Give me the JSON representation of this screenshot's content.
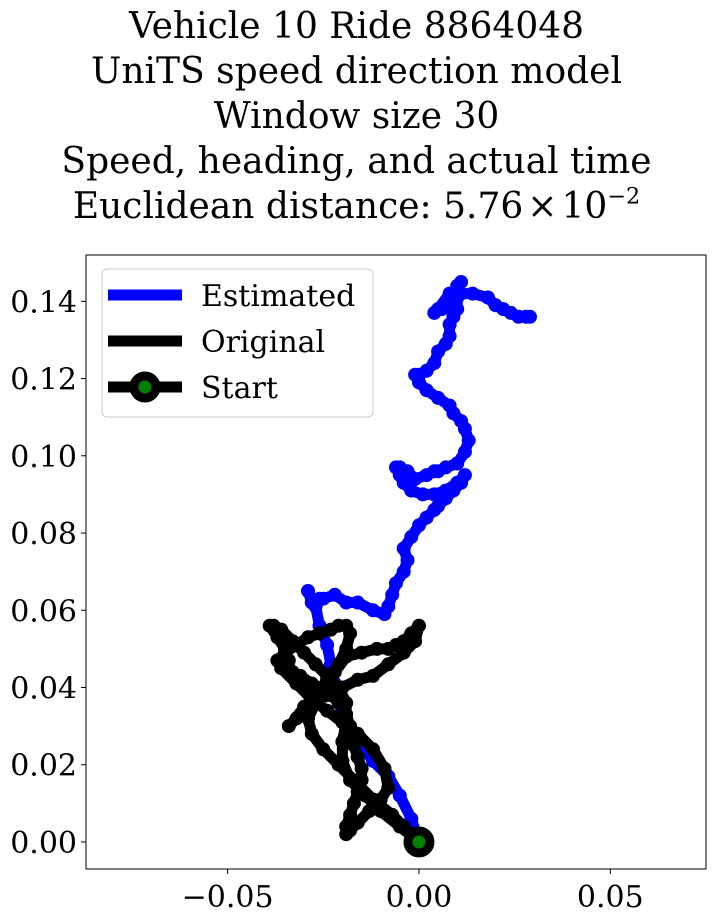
{
  "title_lines": [
    "Vehicle 10 Ride 8864048",
    "UniTS speed direction model",
    "Window size 30",
    "Speed, heading, and actual time"
  ],
  "title_distance": {
    "prefix": "Euclidean distance: 5.76",
    "times": "×",
    "base": "10",
    "exponent": "−2"
  },
  "chart_data": {
    "type": "line",
    "xlim": [
      -0.087,
      0.075
    ],
    "ylim": [
      -0.007,
      0.152
    ],
    "x_ticks": [
      -0.05,
      0.0,
      0.05
    ],
    "x_tick_labels": [
      "−0.05",
      "0.00",
      "0.05"
    ],
    "y_ticks": [
      0.0,
      0.02,
      0.04,
      0.06,
      0.08,
      0.1,
      0.12,
      0.14
    ],
    "y_tick_labels": [
      "0.00",
      "0.02",
      "0.04",
      "0.06",
      "0.08",
      "0.10",
      "0.12",
      "0.14"
    ],
    "legend_position": "upper-left",
    "grid": false,
    "series": [
      {
        "name": "Estimated",
        "color": "#0000ff",
        "x": [
          0.0,
          -0.002,
          -0.005,
          -0.008,
          -0.012,
          -0.016,
          -0.019,
          -0.021,
          -0.022,
          -0.023,
          -0.024,
          -0.026,
          -0.027,
          -0.029,
          -0.028,
          -0.026,
          -0.025,
          -0.022,
          -0.019,
          -0.016,
          -0.012,
          -0.009,
          -0.008,
          -0.007,
          -0.006,
          -0.004,
          -0.003,
          -0.004,
          -0.002,
          0.0,
          0.002,
          0.004,
          0.005,
          0.007,
          0.009,
          0.011,
          0.012,
          0.01,
          0.007,
          0.004,
          0.001,
          -0.002,
          -0.004,
          -0.005,
          -0.006,
          -0.005,
          -0.003,
          -0.001,
          0.002,
          0.004,
          0.005,
          0.007,
          0.01,
          0.012,
          0.013,
          0.012,
          0.011,
          0.009,
          0.008,
          0.005,
          0.002,
          0.0,
          -0.001,
          0.0,
          0.002,
          0.004,
          0.005,
          0.007,
          0.008,
          0.008,
          0.009,
          0.01,
          0.01,
          0.008,
          0.005,
          0.004,
          0.006,
          0.009,
          0.01,
          0.01,
          0.011,
          0.01,
          0.011,
          0.014,
          0.018,
          0.02,
          0.022,
          0.024,
          0.026,
          0.028,
          0.029
        ],
        "y": [
          0.0,
          0.006,
          0.012,
          0.017,
          0.021,
          0.026,
          0.031,
          0.036,
          0.041,
          0.046,
          0.051,
          0.056,
          0.061,
          0.065,
          0.062,
          0.063,
          0.063,
          0.064,
          0.062,
          0.062,
          0.06,
          0.059,
          0.061,
          0.064,
          0.067,
          0.07,
          0.073,
          0.076,
          0.079,
          0.082,
          0.084,
          0.086,
          0.087,
          0.089,
          0.091,
          0.093,
          0.095,
          0.093,
          0.091,
          0.09,
          0.09,
          0.091,
          0.093,
          0.095,
          0.097,
          0.097,
          0.096,
          0.094,
          0.095,
          0.096,
          0.096,
          0.097,
          0.098,
          0.101,
          0.104,
          0.107,
          0.109,
          0.111,
          0.113,
          0.115,
          0.117,
          0.119,
          0.121,
          0.121,
          0.122,
          0.124,
          0.127,
          0.129,
          0.131,
          0.134,
          0.136,
          0.138,
          0.141,
          0.142,
          0.138,
          0.137,
          0.138,
          0.139,
          0.141,
          0.143,
          0.145,
          0.144,
          0.142,
          0.142,
          0.141,
          0.139,
          0.138,
          0.137,
          0.136,
          0.136,
          0.136
        ]
      },
      {
        "name": "Original",
        "color": "#000000",
        "x": [
          0.0,
          -0.005,
          -0.01,
          -0.014,
          -0.018,
          -0.02,
          -0.02,
          -0.019,
          -0.019,
          -0.021,
          -0.024,
          -0.027,
          -0.03,
          -0.033,
          -0.036,
          -0.038,
          -0.039,
          -0.037,
          -0.035,
          -0.034,
          -0.034,
          -0.033,
          -0.031,
          -0.028,
          -0.024,
          -0.021,
          -0.019,
          -0.018,
          -0.018,
          -0.017,
          -0.016,
          -0.015,
          -0.015,
          -0.016,
          -0.017,
          -0.018,
          -0.019,
          -0.019,
          -0.018,
          -0.016,
          -0.013,
          -0.01,
          -0.008,
          -0.009,
          -0.012,
          -0.016,
          -0.02,
          -0.024,
          -0.028,
          -0.032,
          -0.036,
          -0.037,
          -0.035,
          -0.032,
          -0.029,
          -0.026,
          -0.023,
          -0.021,
          -0.019,
          -0.018,
          -0.019,
          -0.021,
          -0.024,
          -0.027,
          -0.03,
          -0.032,
          -0.034,
          -0.031,
          -0.028,
          -0.024,
          -0.02,
          -0.016,
          -0.012,
          -0.008,
          -0.004,
          -0.001,
          0.0,
          -0.002,
          -0.004,
          -0.006,
          -0.008,
          -0.011,
          -0.015,
          -0.019,
          -0.022,
          -0.025,
          -0.027,
          -0.029,
          -0.028,
          -0.025,
          -0.021,
          -0.017,
          -0.012,
          -0.007,
          -0.004,
          -0.002,
          0.0
        ],
        "y": [
          0.0,
          0.004,
          0.008,
          0.012,
          0.016,
          0.021,
          0.026,
          0.031,
          0.036,
          0.04,
          0.043,
          0.046,
          0.049,
          0.052,
          0.055,
          0.056,
          0.056,
          0.053,
          0.05,
          0.047,
          0.045,
          0.044,
          0.043,
          0.041,
          0.039,
          0.036,
          0.033,
          0.03,
          0.027,
          0.025,
          0.022,
          0.019,
          0.016,
          0.013,
          0.01,
          0.007,
          0.004,
          0.002,
          0.003,
          0.005,
          0.008,
          0.011,
          0.014,
          0.019,
          0.024,
          0.028,
          0.031,
          0.034,
          0.037,
          0.041,
          0.045,
          0.047,
          0.049,
          0.051,
          0.053,
          0.054,
          0.055,
          0.056,
          0.056,
          0.054,
          0.05,
          0.046,
          0.042,
          0.038,
          0.035,
          0.032,
          0.03,
          0.033,
          0.036,
          0.038,
          0.04,
          0.042,
          0.043,
          0.046,
          0.049,
          0.052,
          0.056,
          0.054,
          0.052,
          0.051,
          0.05,
          0.05,
          0.049,
          0.048,
          0.044,
          0.04,
          0.036,
          0.032,
          0.028,
          0.024,
          0.02,
          0.016,
          0.011,
          0.007,
          0.004,
          0.002,
          0.0
        ]
      }
    ],
    "start_marker": {
      "name": "Start",
      "x": 0.0,
      "y": 0.0,
      "edge_color": "#000000",
      "face_color": "#008000"
    }
  }
}
